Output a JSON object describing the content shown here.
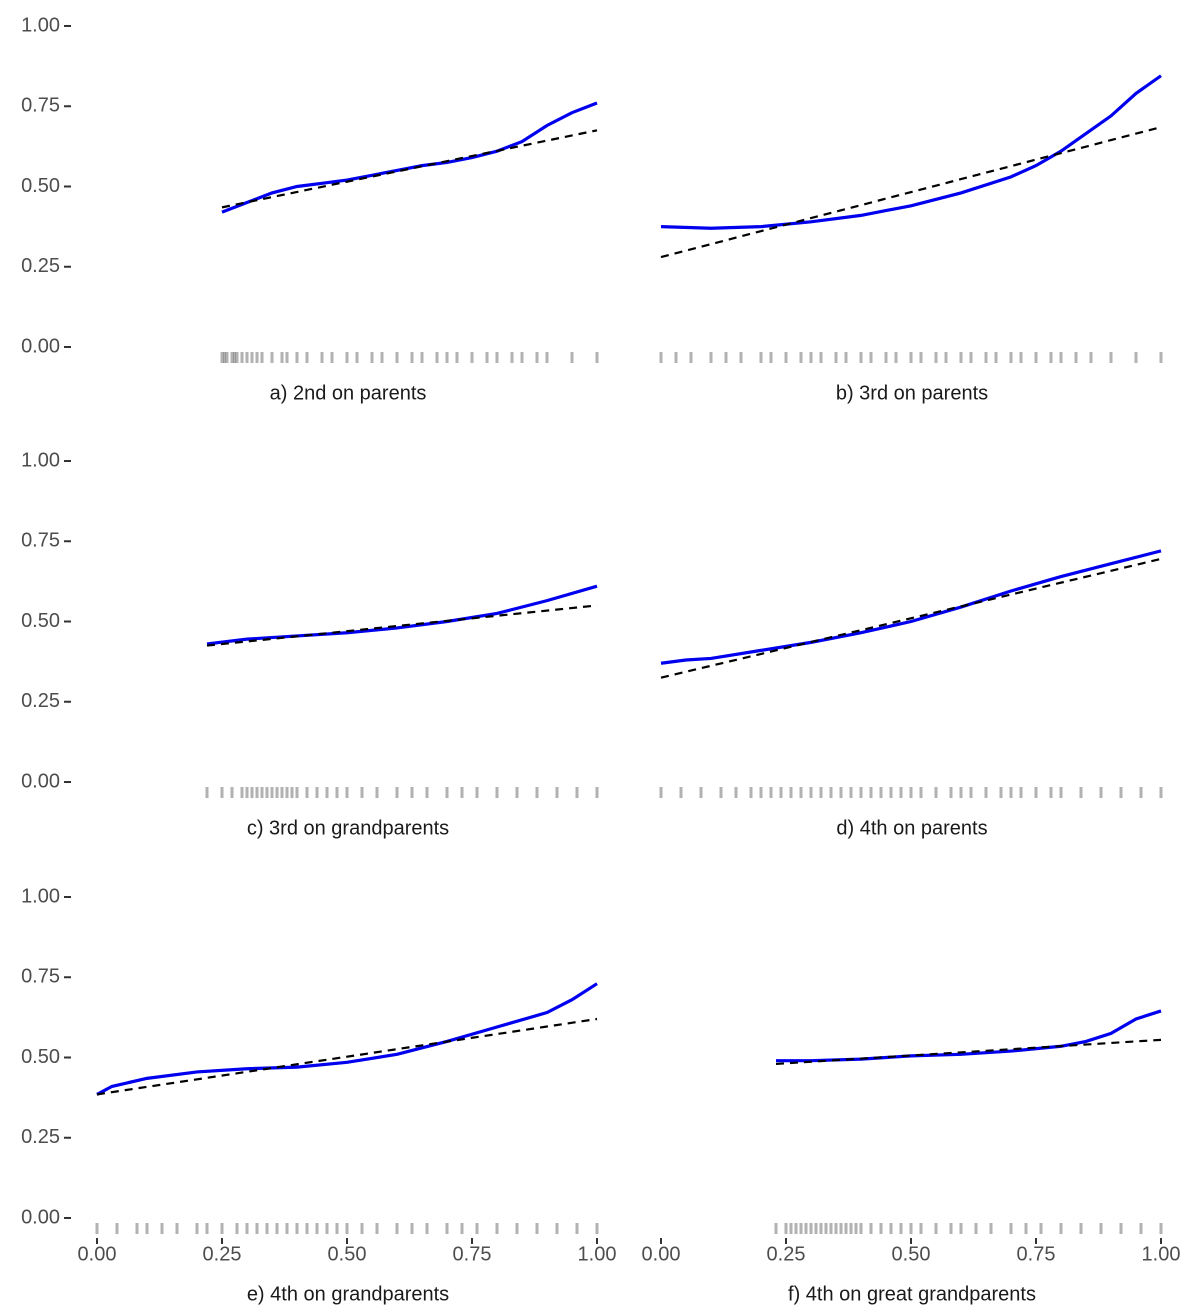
{
  "chart_data": [
    {
      "type": "line",
      "xlabel": "a) 2nd on parents",
      "xlim": [
        0,
        1
      ],
      "ylim": [
        0,
        1
      ],
      "yticks": [
        {
          "value": 0,
          "label": "0.00"
        },
        {
          "value": 0.25,
          "label": "0.25"
        },
        {
          "value": 0.5,
          "label": "0.50"
        },
        {
          "value": 0.75,
          "label": "0.75"
        },
        {
          "value": 1,
          "label": "1.00"
        }
      ],
      "series": [
        {
          "color": "#0000ee",
          "style": "solid",
          "x": [
            0.25,
            0.3,
            0.35,
            0.4,
            0.45,
            0.5,
            0.55,
            0.6,
            0.65,
            0.7,
            0.75,
            0.8,
            0.85,
            0.9,
            0.95,
            1.0
          ],
          "values": [
            0.42,
            0.45,
            0.48,
            0.5,
            0.51,
            0.52,
            0.535,
            0.55,
            0.565,
            0.575,
            0.59,
            0.61,
            0.64,
            0.69,
            0.73,
            0.76
          ]
        },
        {
          "color": "#000000",
          "style": "dashed",
          "x": [
            0.25,
            1.0
          ],
          "values": [
            0.435,
            0.675
          ]
        }
      ],
      "rug": {
        "color": "#000000",
        "x": [
          0.25,
          0.255,
          0.26,
          0.27,
          0.275,
          0.28,
          0.29,
          0.3,
          0.31,
          0.32,
          0.33,
          0.35,
          0.37,
          0.38,
          0.4,
          0.42,
          0.45,
          0.47,
          0.5,
          0.52,
          0.55,
          0.57,
          0.6,
          0.63,
          0.65,
          0.68,
          0.7,
          0.72,
          0.75,
          0.78,
          0.8,
          0.83,
          0.85,
          0.88,
          0.9,
          0.95,
          1.0
        ]
      }
    },
    {
      "type": "line",
      "xlabel": "b) 3rd on parents",
      "xlim": [
        0,
        1
      ],
      "ylim": [
        0,
        1
      ],
      "series": [
        {
          "color": "#0000ee",
          "style": "solid",
          "x": [
            0,
            0.1,
            0.2,
            0.3,
            0.4,
            0.5,
            0.6,
            0.7,
            0.75,
            0.8,
            0.9,
            0.95,
            1.0
          ],
          "values": [
            0.375,
            0.37,
            0.375,
            0.39,
            0.41,
            0.44,
            0.48,
            0.53,
            0.565,
            0.61,
            0.72,
            0.79,
            0.845
          ]
        },
        {
          "color": "#000000",
          "style": "dashed",
          "x": [
            0,
            1.0
          ],
          "values": [
            0.28,
            0.685
          ]
        }
      ],
      "rug": {
        "color": "#000000",
        "x": [
          0.0,
          0.03,
          0.06,
          0.1,
          0.13,
          0.16,
          0.2,
          0.22,
          0.25,
          0.28,
          0.3,
          0.32,
          0.35,
          0.37,
          0.4,
          0.42,
          0.45,
          0.47,
          0.5,
          0.52,
          0.55,
          0.57,
          0.6,
          0.62,
          0.65,
          0.67,
          0.7,
          0.72,
          0.75,
          0.78,
          0.8,
          0.83,
          0.86,
          0.9,
          0.95,
          1.0
        ]
      }
    },
    {
      "type": "line",
      "xlabel": "c) 3rd on grandparents",
      "xlim": [
        0,
        1
      ],
      "ylim": [
        0,
        1
      ],
      "yticks": [
        {
          "value": 0,
          "label": "0.00"
        },
        {
          "value": 0.25,
          "label": "0.25"
        },
        {
          "value": 0.5,
          "label": "0.50"
        },
        {
          "value": 0.75,
          "label": "0.75"
        },
        {
          "value": 1,
          "label": "1.00"
        }
      ],
      "series": [
        {
          "color": "#0000ee",
          "style": "solid",
          "x": [
            0.22,
            0.3,
            0.4,
            0.5,
            0.6,
            0.7,
            0.8,
            0.9,
            1.0
          ],
          "values": [
            0.43,
            0.445,
            0.455,
            0.465,
            0.48,
            0.5,
            0.525,
            0.565,
            0.61
          ]
        },
        {
          "color": "#000000",
          "style": "dashed",
          "x": [
            0.22,
            1.0
          ],
          "values": [
            0.425,
            0.55
          ]
        }
      ],
      "rug": {
        "color": "#000000",
        "x": [
          0.22,
          0.25,
          0.27,
          0.29,
          0.3,
          0.31,
          0.32,
          0.33,
          0.34,
          0.35,
          0.36,
          0.37,
          0.38,
          0.39,
          0.4,
          0.42,
          0.44,
          0.46,
          0.48,
          0.5,
          0.53,
          0.56,
          0.6,
          0.63,
          0.66,
          0.7,
          0.73,
          0.76,
          0.8,
          0.84,
          0.88,
          0.92,
          0.96,
          1.0
        ]
      }
    },
    {
      "type": "line",
      "xlabel": "d) 4th on parents",
      "xlim": [
        0,
        1
      ],
      "ylim": [
        0,
        1
      ],
      "series": [
        {
          "color": "#0000ee",
          "style": "solid",
          "x": [
            0,
            0.05,
            0.1,
            0.2,
            0.3,
            0.4,
            0.5,
            0.6,
            0.7,
            0.8,
            0.9,
            1.0
          ],
          "values": [
            0.37,
            0.38,
            0.385,
            0.41,
            0.435,
            0.465,
            0.5,
            0.545,
            0.595,
            0.64,
            0.68,
            0.72
          ]
        },
        {
          "color": "#000000",
          "style": "dashed",
          "x": [
            0,
            1.0
          ],
          "values": [
            0.325,
            0.695
          ]
        }
      ],
      "rug": {
        "color": "#000000",
        "x": [
          0.0,
          0.04,
          0.08,
          0.12,
          0.15,
          0.18,
          0.2,
          0.22,
          0.24,
          0.26,
          0.28,
          0.3,
          0.32,
          0.34,
          0.36,
          0.38,
          0.4,
          0.42,
          0.44,
          0.46,
          0.48,
          0.5,
          0.52,
          0.55,
          0.58,
          0.6,
          0.62,
          0.65,
          0.68,
          0.7,
          0.72,
          0.75,
          0.78,
          0.8,
          0.84,
          0.88,
          0.92,
          0.96,
          1.0
        ]
      }
    },
    {
      "type": "line",
      "xlabel": "e) 4th on grandparents",
      "xlim": [
        0,
        1
      ],
      "ylim": [
        0,
        1
      ],
      "yticks": [
        {
          "value": 0,
          "label": "0.00"
        },
        {
          "value": 0.25,
          "label": "0.25"
        },
        {
          "value": 0.5,
          "label": "0.50"
        },
        {
          "value": 0.75,
          "label": "0.75"
        },
        {
          "value": 1,
          "label": "1.00"
        }
      ],
      "xticks": [
        {
          "value": 0,
          "label": "0.00"
        },
        {
          "value": 0.25,
          "label": "0.25"
        },
        {
          "value": 0.5,
          "label": "0.50"
        },
        {
          "value": 0.75,
          "label": "0.75"
        },
        {
          "value": 1,
          "label": "1.00"
        }
      ],
      "series": [
        {
          "color": "#0000ee",
          "style": "solid",
          "x": [
            0,
            0.03,
            0.1,
            0.2,
            0.3,
            0.4,
            0.5,
            0.6,
            0.7,
            0.8,
            0.9,
            0.95,
            1.0
          ],
          "values": [
            0.385,
            0.41,
            0.435,
            0.455,
            0.465,
            0.47,
            0.485,
            0.51,
            0.55,
            0.595,
            0.64,
            0.68,
            0.73
          ]
        },
        {
          "color": "#000000",
          "style": "dashed",
          "x": [
            0,
            1.0
          ],
          "values": [
            0.385,
            0.62
          ]
        }
      ],
      "rug": {
        "color": "#000000",
        "x": [
          0.0,
          0.04,
          0.08,
          0.1,
          0.13,
          0.16,
          0.2,
          0.22,
          0.25,
          0.28,
          0.3,
          0.32,
          0.34,
          0.36,
          0.38,
          0.4,
          0.42,
          0.44,
          0.46,
          0.48,
          0.5,
          0.53,
          0.56,
          0.6,
          0.63,
          0.66,
          0.7,
          0.73,
          0.76,
          0.8,
          0.84,
          0.88,
          0.92,
          0.96,
          1.0
        ]
      }
    },
    {
      "type": "line",
      "xlabel": "f) 4th on great grandparents",
      "xlim": [
        0,
        1
      ],
      "ylim": [
        0,
        1
      ],
      "xticks": [
        {
          "value": 0,
          "label": "0.00"
        },
        {
          "value": 0.25,
          "label": "0.25"
        },
        {
          "value": 0.5,
          "label": "0.50"
        },
        {
          "value": 0.75,
          "label": "0.75"
        },
        {
          "value": 1,
          "label": "1.00"
        }
      ],
      "series": [
        {
          "color": "#0000ee",
          "style": "solid",
          "x": [
            0.23,
            0.3,
            0.4,
            0.5,
            0.6,
            0.7,
            0.8,
            0.85,
            0.9,
            0.95,
            1.0
          ],
          "values": [
            0.49,
            0.49,
            0.495,
            0.505,
            0.51,
            0.52,
            0.535,
            0.55,
            0.575,
            0.62,
            0.645
          ]
        },
        {
          "color": "#000000",
          "style": "dashed",
          "x": [
            0.23,
            1.0
          ],
          "values": [
            0.48,
            0.555
          ]
        }
      ],
      "rug": {
        "color": "#000000",
        "x": [
          0.23,
          0.25,
          0.26,
          0.27,
          0.28,
          0.29,
          0.3,
          0.31,
          0.32,
          0.33,
          0.34,
          0.35,
          0.36,
          0.37,
          0.38,
          0.39,
          0.4,
          0.42,
          0.44,
          0.46,
          0.48,
          0.5,
          0.52,
          0.55,
          0.58,
          0.6,
          0.63,
          0.66,
          0.7,
          0.73,
          0.76,
          0.8,
          0.84,
          0.88,
          0.92,
          0.96,
          1.0
        ]
      }
    }
  ]
}
